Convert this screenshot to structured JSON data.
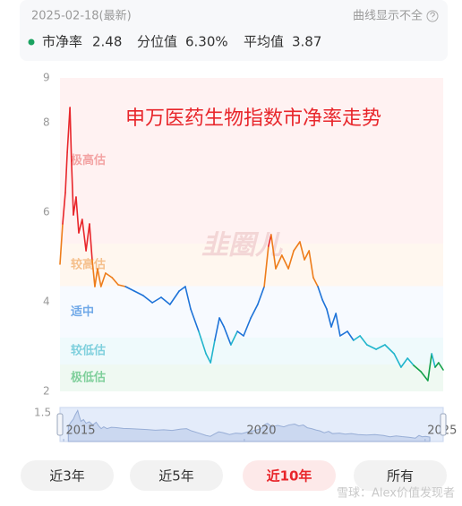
{
  "header": {
    "date": "2025-02-18(最新)",
    "note": "曲线显示不全"
  },
  "stats": [
    {
      "name": "市净率",
      "value": 2.48,
      "color": "#1aa260"
    },
    {
      "name": "分位值",
      "value": {
        "value": 6.3,
        "label": "6.30%"
      }
    },
    {
      "name": "平均值",
      "value": 3.87
    }
  ],
  "chart_data": {
    "type": "line",
    "title": "申万医药生物指数市净率走势",
    "title_color": "#e8262b",
    "ylim": [
      2,
      9
    ],
    "yticks": [
      2,
      4,
      6,
      8,
      9
    ],
    "xlim": [
      2015.13,
      2025.13
    ],
    "watermark": "韭圈儿",
    "zones": [
      {
        "name": "极高估",
        "range": [
          5.3,
          9
        ],
        "band_color": "#fff2f2",
        "label_color": "#f3a3a3",
        "line_color": "#e8262b"
      },
      {
        "name": "较高估",
        "range": [
          4.35,
          5.3
        ],
        "band_color": "#fff7ef",
        "label_color": "#f5c08c",
        "line_color": "#ee7d1b"
      },
      {
        "name": "适中",
        "range": [
          3.2,
          4.35
        ],
        "band_color": "#f7faff",
        "label_color": "#6fa8e8",
        "line_color": "#1e73d8"
      },
      {
        "name": "较低估",
        "range": [
          2.6,
          3.2
        ],
        "band_color": "#effafc",
        "label_color": "#7fd0dd",
        "line_color": "#21b5cc"
      },
      {
        "name": "极低估",
        "range": [
          2,
          2.6
        ],
        "band_color": "#eff9f2",
        "label_color": "#7fcf9b",
        "line_color": "#14a04a"
      }
    ],
    "x": [
      2015.13,
      2015.2,
      2015.27,
      2015.32,
      2015.39,
      2015.43,
      2015.48,
      2015.55,
      2015.62,
      2015.71,
      2015.81,
      2015.9,
      2015.97,
      2016.04,
      2016.11,
      2016.2,
      2016.32,
      2016.49,
      2016.65,
      2016.84,
      2017.07,
      2017.3,
      2017.54,
      2017.77,
      2018.0,
      2018.24,
      2018.4,
      2018.54,
      2018.75,
      2018.94,
      2019.06,
      2019.17,
      2019.29,
      2019.41,
      2019.59,
      2019.76,
      2019.92,
      2020.11,
      2020.29,
      2020.46,
      2020.57,
      2020.64,
      2020.76,
      2020.92,
      2021.09,
      2021.23,
      2021.39,
      2021.51,
      2021.63,
      2021.74,
      2021.86,
      2021.98,
      2022.09,
      2022.21,
      2022.33,
      2022.44,
      2022.63,
      2022.79,
      2022.96,
      2023.14,
      2023.38,
      2023.61,
      2023.85,
      2024.03,
      2024.2,
      2024.36,
      2024.55,
      2024.73,
      2024.83,
      2024.92,
      2025.01,
      2025.13
    ],
    "series": [
      {
        "name": "市净率",
        "values": [
          4.84,
          5.74,
          6.44,
          7.34,
          8.34,
          7.14,
          5.94,
          6.34,
          5.54,
          5.84,
          5.14,
          5.74,
          4.94,
          4.34,
          4.74,
          4.34,
          4.64,
          4.54,
          4.38,
          4.34,
          4.24,
          4.14,
          3.98,
          4.1,
          3.94,
          4.24,
          4.34,
          3.84,
          3.34,
          2.84,
          2.64,
          3.14,
          3.64,
          3.44,
          3.04,
          3.34,
          3.24,
          3.64,
          3.94,
          4.34,
          5.24,
          5.5,
          4.74,
          5.04,
          4.74,
          5.14,
          5.34,
          4.94,
          5.14,
          4.54,
          4.34,
          4.04,
          3.84,
          3.44,
          3.74,
          3.24,
          3.34,
          3.14,
          3.24,
          3.04,
          2.94,
          3.04,
          2.84,
          2.54,
          2.74,
          2.58,
          2.44,
          2.24,
          2.84,
          2.54,
          2.64,
          2.48
        ]
      }
    ],
    "navigator": {
      "xlim": [
        2014.9,
        2025.5
      ],
      "xticks": [
        2015,
        2020,
        2025
      ],
      "ylim": [
        1.5,
        9
      ],
      "yticks": [
        1.5
      ]
    }
  },
  "buttons": [
    {
      "label": "近3年"
    },
    {
      "label": "近5年"
    },
    {
      "label": "近10年"
    },
    {
      "label": "所有"
    }
  ],
  "selected": 2,
  "credit": "雪球：Alex价值发现者"
}
